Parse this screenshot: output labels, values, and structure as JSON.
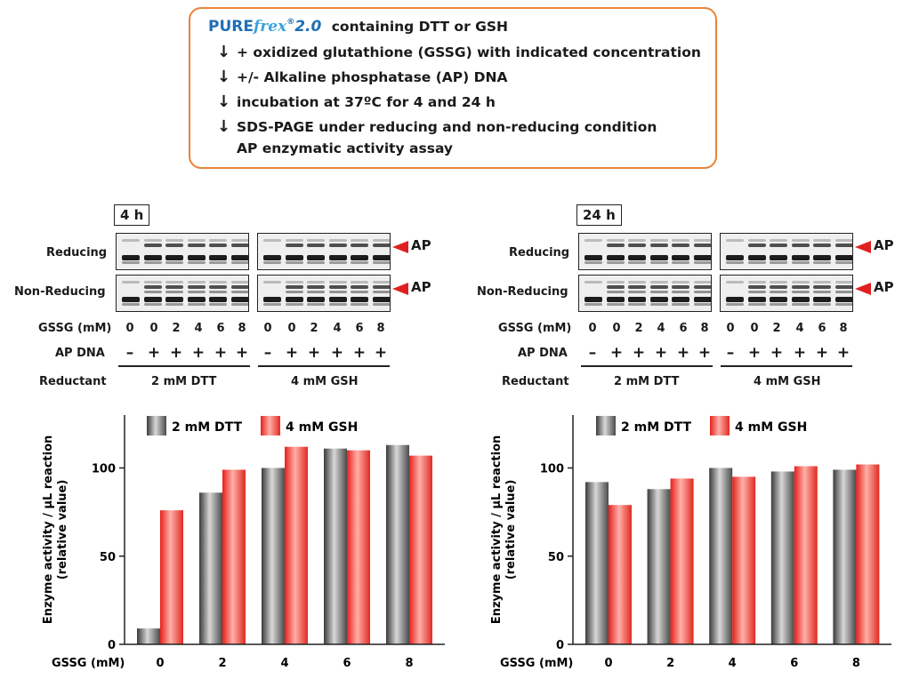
{
  "protocol": {
    "logo_main": "PURE",
    "logo_italic": "frex",
    "logo_reg": "®",
    "logo_ver": "2.0",
    "line1": "containing DTT or GSH",
    "line2": "+ oxidized glutathione (GSSG) with indicated concentration",
    "line3": "+/- Alkaline phosphatase (AP) DNA",
    "line4": "incubation at 37ºC for 4 and 24 h",
    "line5": "SDS-PAGE under reducing and non-reducing condition",
    "line6": "AP enzymatic activity assay"
  },
  "colors": {
    "accent_orange": "#e8833a",
    "red_bar": "#f0302c",
    "gray_bar": "#6a6a6a",
    "arrow_red": "#e02020"
  },
  "gels": [
    {
      "time": "4 h",
      "row_labels": [
        "Reducing",
        "Non-Reducing"
      ],
      "ap_label": "AP",
      "gssg_label": "GSSG (mM)",
      "gssg": [
        "0",
        "0",
        "2",
        "4",
        "6",
        "8",
        "0",
        "0",
        "2",
        "4",
        "6",
        "8"
      ],
      "apdna_label": "AP DNA",
      "apdna": [
        "–",
        "+",
        "+",
        "+",
        "+",
        "+",
        "–",
        "+",
        "+",
        "+",
        "+",
        "+"
      ],
      "reductant_label": "Reductant",
      "reductants": [
        "2 mM DTT",
        "4 mM GSH"
      ]
    },
    {
      "time": "24 h",
      "row_labels": [
        "Reducing",
        "Non-Reducing"
      ],
      "ap_label": "AP",
      "gssg_label": "GSSG (mM)",
      "gssg": [
        "0",
        "0",
        "2",
        "4",
        "6",
        "8",
        "0",
        "0",
        "2",
        "4",
        "6",
        "8"
      ],
      "apdna_label": "AP DNA",
      "apdna": [
        "–",
        "+",
        "+",
        "+",
        "+",
        "+",
        "–",
        "+",
        "+",
        "+",
        "+",
        "+"
      ],
      "reductant_label": "Reductant",
      "reductants": [
        "2 mM DTT",
        "4 mM GSH"
      ]
    }
  ],
  "chart_data": [
    {
      "type": "bar",
      "ylabel": "Enzyme activity / μL reaction (relative value)",
      "xlabel": "GSSG (mM)",
      "categories": [
        "0",
        "2",
        "4",
        "6",
        "8"
      ],
      "ylim": [
        0,
        130
      ],
      "yticks": [
        0,
        50,
        100
      ],
      "legend_position": "top-left",
      "series": [
        {
          "name": "2 mM DTT",
          "values": [
            9,
            86,
            100,
            111,
            113
          ]
        },
        {
          "name": "4 mM GSH",
          "values": [
            76,
            99,
            112,
            110,
            107
          ]
        }
      ]
    },
    {
      "type": "bar",
      "ylabel": "Enzyme activity / μL reaction (relative value)",
      "xlabel": "GSSG (mM)",
      "categories": [
        "0",
        "2",
        "4",
        "6",
        "8"
      ],
      "ylim": [
        0,
        130
      ],
      "yticks": [
        0,
        50,
        100
      ],
      "legend_position": "top-left",
      "series": [
        {
          "name": "2 mM DTT",
          "values": [
            92,
            88,
            100,
            98,
            99
          ]
        },
        {
          "name": "4 mM GSH",
          "values": [
            79,
            94,
            95,
            101,
            102
          ]
        }
      ]
    }
  ]
}
